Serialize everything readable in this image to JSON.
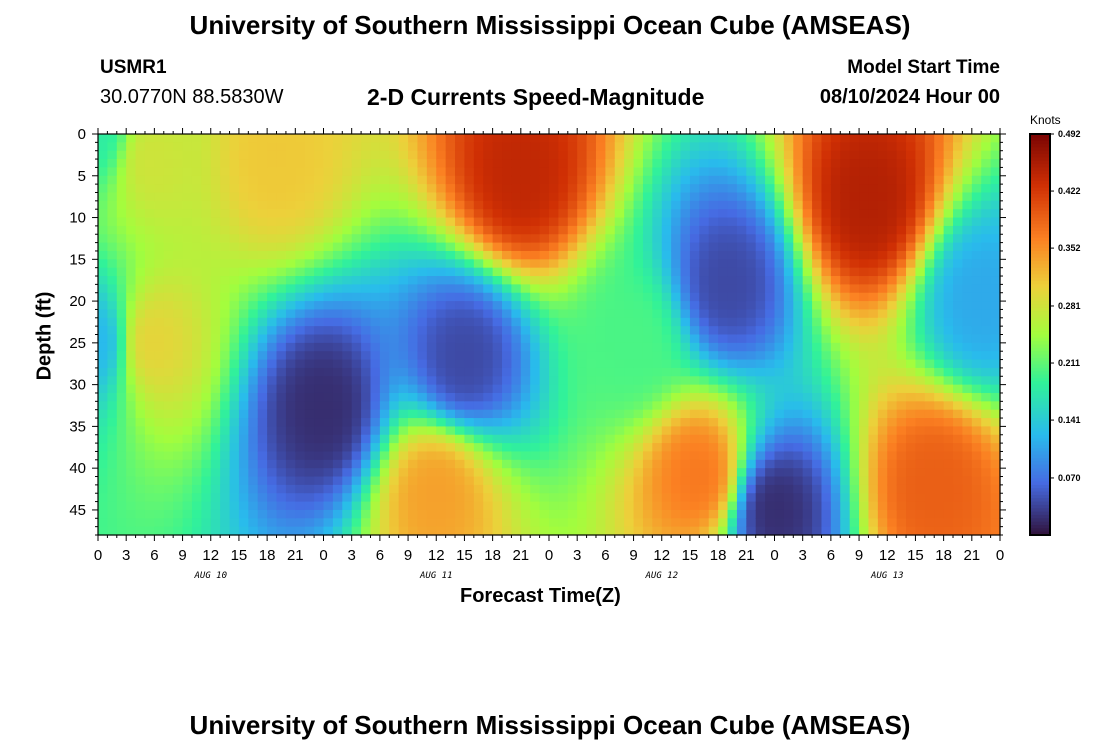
{
  "header": {
    "title": "University of Southern Mississippi Ocean Cube (AMSEAS)",
    "station_id": "USMR1",
    "coords": "30.0770N  88.5830W",
    "subtitle": "2-D Currents Speed-Magnitude",
    "start_label": "Model Start Time",
    "start_value": "08/10/2024 Hour 00"
  },
  "footer": {
    "title": "University of Southern Mississippi Ocean Cube (AMSEAS)"
  },
  "chart_data": {
    "type": "heatmap",
    "xlabel": "Forecast Time(Z)",
    "ylabel": "Depth (ft)",
    "x_range_hours": [
      0,
      96
    ],
    "x_tick_hours": [
      0,
      3,
      6,
      9,
      12,
      15,
      18,
      21,
      24,
      27,
      30,
      33,
      36,
      39,
      42,
      45,
      48,
      51,
      54,
      57,
      60,
      63,
      66,
      69,
      72,
      75,
      78,
      81,
      84,
      87,
      90,
      93,
      96
    ],
    "x_tick_labels": [
      "0",
      "3",
      "6",
      "9",
      "12",
      "15",
      "18",
      "21",
      "0",
      "3",
      "6",
      "9",
      "12",
      "15",
      "18",
      "21",
      "0",
      "3",
      "6",
      "9",
      "12",
      "15",
      "18",
      "21",
      "0",
      "3",
      "6",
      "9",
      "12",
      "15",
      "18",
      "21",
      "0"
    ],
    "day_labels": [
      {
        "text": "AUG 10",
        "hour": 12
      },
      {
        "text": "AUG 11",
        "hour": 36
      },
      {
        "text": "AUG 12",
        "hour": 60
      },
      {
        "text": "AUG 13",
        "hour": 84
      }
    ],
    "y_range_ft": [
      0,
      48
    ],
    "y_ticks": [
      0,
      5,
      10,
      15,
      20,
      25,
      30,
      35,
      40,
      45
    ],
    "y_tick_labels": [
      "0",
      "5",
      "10",
      "15",
      "20",
      "25",
      "30",
      "35",
      "40",
      "45"
    ],
    "colorbar": {
      "unit": "Knots",
      "min": 0.0,
      "max": 0.492,
      "tick_values": [
        0.07,
        0.141,
        0.211,
        0.281,
        0.352,
        0.422,
        0.492
      ],
      "tick_labels": [
        "0.070",
        "0.141",
        "0.211",
        "0.281",
        "0.352",
        "0.422",
        "0.492"
      ],
      "colormap": "turbo"
    },
    "field_features_knots": [
      {
        "hour": 0,
        "depth": 0,
        "speed": 0.18
      },
      {
        "hour": 0,
        "depth": 25,
        "speed": 0.12
      },
      {
        "hour": 5.5,
        "depth": 25,
        "speed": 0.3
      },
      {
        "hour": 5.5,
        "depth": 3,
        "speed": 0.28
      },
      {
        "hour": 19,
        "depth": 3,
        "speed": 0.31
      },
      {
        "hour": 24,
        "depth": 33,
        "speed": 0.02
      },
      {
        "hour": 36,
        "depth": 43,
        "speed": 0.34
      },
      {
        "hour": 39,
        "depth": 27,
        "speed": 0.04
      },
      {
        "hour": 45,
        "depth": 5,
        "speed": 0.44
      },
      {
        "hour": 57,
        "depth": 25,
        "speed": 0.2
      },
      {
        "hour": 64,
        "depth": 41,
        "speed": 0.37
      },
      {
        "hour": 67,
        "depth": 18,
        "speed": 0.04
      },
      {
        "hour": 72,
        "depth": 45,
        "speed": 0.02
      },
      {
        "hour": 82,
        "depth": 8,
        "speed": 0.45
      },
      {
        "hour": 89,
        "depth": 42,
        "speed": 0.39
      },
      {
        "hour": 94,
        "depth": 20,
        "speed": 0.11
      }
    ]
  }
}
